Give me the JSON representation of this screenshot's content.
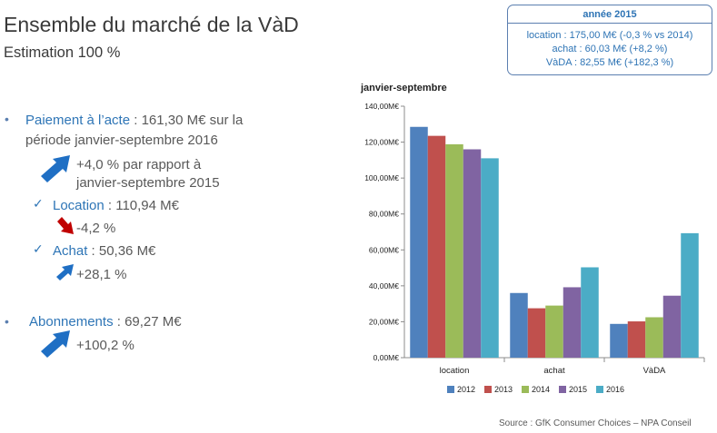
{
  "header": {
    "title": "Ensemble du marché de la VàD",
    "subtitle": "Estimation 100 %"
  },
  "info_box": {
    "heading": "année 2015",
    "lines": [
      "location : 175,00 M€ (-0,3 % vs 2014)",
      "achat : 60,03 M€ (+8,2 %)",
      "VàDA : 82,55 M€ (+182,3 %)"
    ]
  },
  "bullets": {
    "paiement": {
      "label": "Paiement à l’acte",
      "value_line1": " : 161,30 M€ sur la",
      "value_line2": "période janvier-septembre 2016",
      "change_line1": "+4,0 % par rapport à",
      "change_line2": "janvier-septembre 2015"
    },
    "location": {
      "label": "Location",
      "value": " : 110,94 M€",
      "change": "-4,2 %"
    },
    "achat": {
      "label": "Achat",
      "value": " : 50,36 M€",
      "change": "+28,1 %"
    },
    "abonnements": {
      "label": "Abonnements",
      "value": " : 69,27 M€",
      "change": "+100,2 %"
    }
  },
  "icons": {
    "bullet": "•",
    "check": "✓",
    "up_arrow": "up-arrow-icon",
    "down_arrow": "down-arrow-icon"
  },
  "colors": {
    "blue_arrow": "#1f6fc4",
    "red_arrow": "#c00000"
  },
  "chart_data": {
    "type": "bar",
    "title": "janvier-septembre",
    "categories": [
      "location",
      "achat",
      "VàDA"
    ],
    "series": [
      {
        "name": "2012",
        "color": "#4f81bd",
        "values": [
          128.5,
          36.0,
          18.8
        ]
      },
      {
        "name": "2013",
        "color": "#c0504d",
        "values": [
          123.5,
          27.5,
          20.2
        ]
      },
      {
        "name": "2014",
        "color": "#9bbb59",
        "values": [
          118.8,
          29.0,
          22.5
        ]
      },
      {
        "name": "2015",
        "color": "#8064a2",
        "values": [
          116.0,
          39.2,
          34.5
        ]
      },
      {
        "name": "2016",
        "color": "#4bacc6",
        "values": [
          111.0,
          50.3,
          69.3
        ]
      }
    ],
    "y_ticks": [
      "0,00M€",
      "20,00M€",
      "40,00M€",
      "60,00M€",
      "80,00M€",
      "100,00M€",
      "120,00M€",
      "140,00M€"
    ],
    "ylim": [
      0,
      140
    ],
    "legend_position": "bottom"
  },
  "footer": {
    "source": "Source : GfK Consumer Choices – NPA Conseil"
  }
}
